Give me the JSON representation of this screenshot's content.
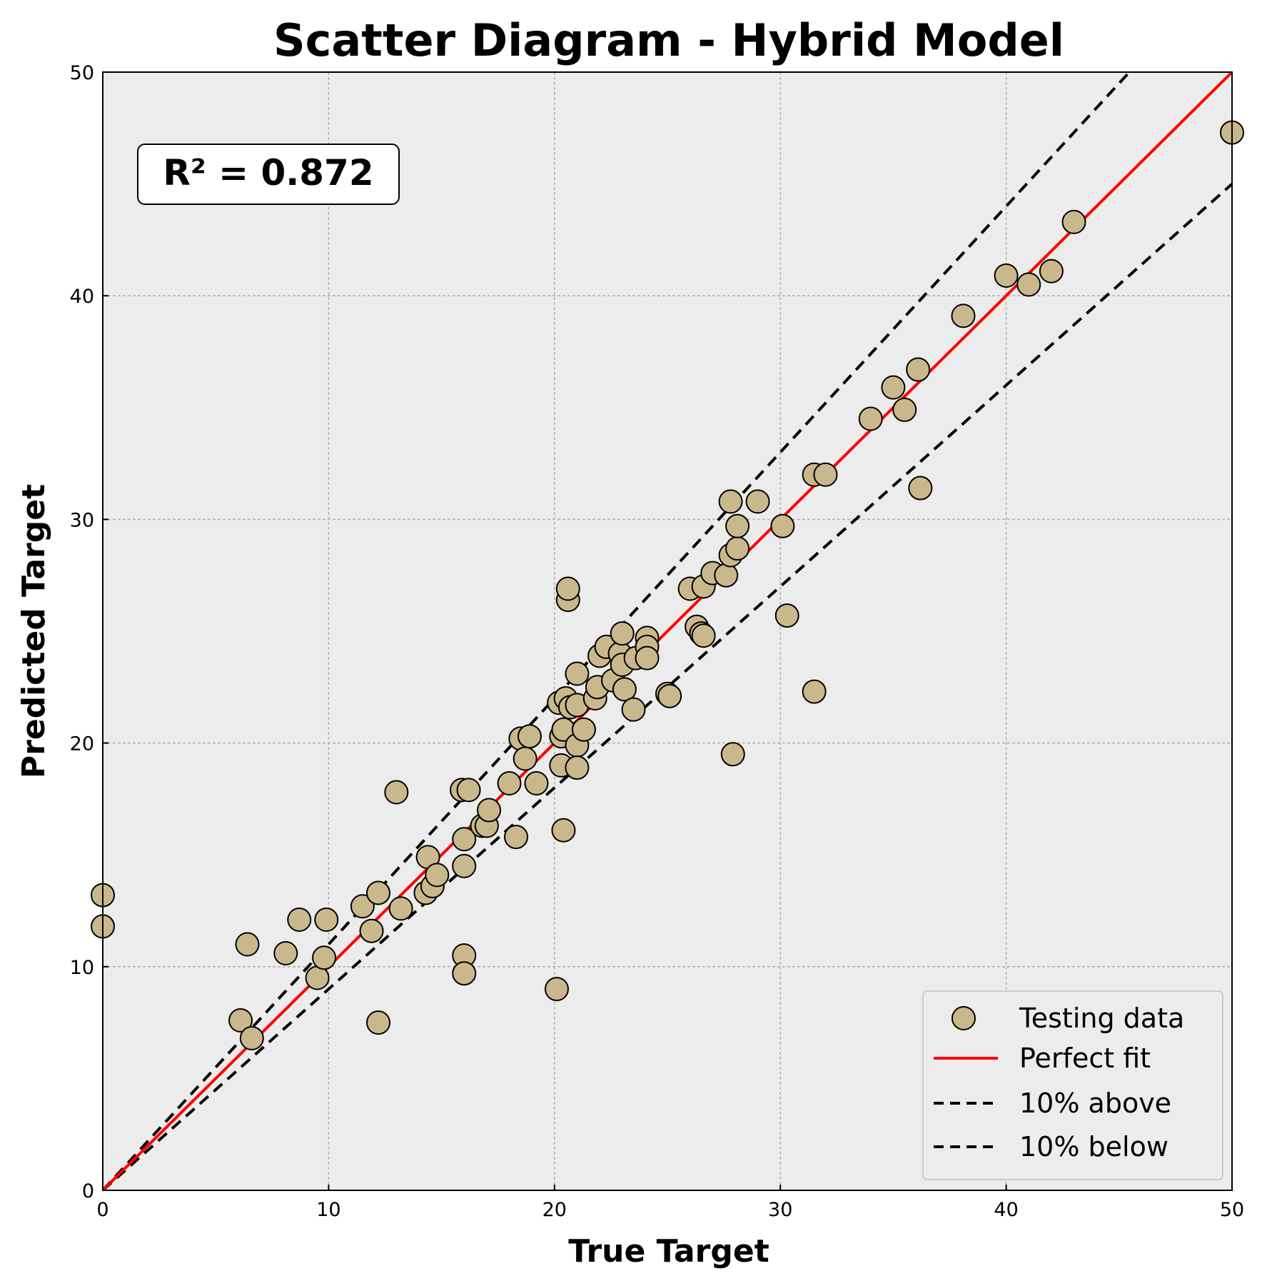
{
  "chart_data": {
    "type": "scatter",
    "title": "Scatter Diagram - Hybrid Model",
    "xlabel": "True Target",
    "ylabel": "Predicted Target",
    "xlim": [
      0,
      50
    ],
    "ylim": [
      0,
      50
    ],
    "xticks": [
      "0",
      "10",
      "20",
      "30",
      "40",
      "50"
    ],
    "yticks": [
      "0",
      "10",
      "20",
      "30",
      "40",
      "50"
    ],
    "grid": true,
    "annotation": "R² = 0.872",
    "legend_position": "lower-right",
    "legend": [
      {
        "label": "Testing data",
        "style": "marker"
      },
      {
        "label": "Perfect fit",
        "style": "solid-red"
      },
      {
        "label": "10% above",
        "style": "dashed-black"
      },
      {
        "label": "10% below",
        "style": "dashed-black"
      }
    ],
    "colors": {
      "point_fill": "#c9b88b",
      "perfect_fit": "#ff0000",
      "bounds": "#000000",
      "plot_background": "#ececec"
    },
    "reference_lines": [
      {
        "name": "Perfect fit",
        "slope": 1.0
      },
      {
        "name": "10% above",
        "slope": 1.1
      },
      {
        "name": "10% below",
        "slope": 0.9
      }
    ],
    "series": [
      {
        "name": "Testing data",
        "points": [
          [
            0.0,
            13.2
          ],
          [
            0.0,
            11.8
          ],
          [
            6.1,
            7.6
          ],
          [
            6.4,
            11.0
          ],
          [
            6.6,
            6.8
          ],
          [
            8.1,
            10.6
          ],
          [
            8.7,
            12.1
          ],
          [
            9.5,
            9.5
          ],
          [
            9.8,
            10.4
          ],
          [
            9.9,
            12.1
          ],
          [
            11.5,
            12.7
          ],
          [
            11.9,
            11.6
          ],
          [
            12.2,
            13.3
          ],
          [
            12.2,
            7.5
          ],
          [
            13.0,
            17.8
          ],
          [
            13.2,
            12.6
          ],
          [
            14.3,
            13.3
          ],
          [
            14.4,
            14.9
          ],
          [
            14.6,
            13.6
          ],
          [
            14.8,
            14.1
          ],
          [
            15.9,
            17.9
          ],
          [
            16.0,
            15.7
          ],
          [
            16.0,
            14.5
          ],
          [
            16.0,
            10.5
          ],
          [
            16.0,
            9.7
          ],
          [
            16.2,
            17.9
          ],
          [
            16.8,
            16.3
          ],
          [
            17.0,
            16.3
          ],
          [
            17.1,
            17.0
          ],
          [
            18.0,
            18.2
          ],
          [
            18.3,
            15.8
          ],
          [
            18.5,
            20.2
          ],
          [
            18.7,
            19.3
          ],
          [
            18.9,
            20.3
          ],
          [
            19.2,
            18.2
          ],
          [
            20.1,
            9.0
          ],
          [
            20.2,
            21.8
          ],
          [
            20.3,
            20.3
          ],
          [
            20.3,
            19.0
          ],
          [
            20.4,
            16.1
          ],
          [
            20.4,
            20.6
          ],
          [
            20.5,
            22.0
          ],
          [
            20.6,
            26.4
          ],
          [
            20.6,
            26.9
          ],
          [
            20.7,
            21.6
          ],
          [
            21.0,
            21.7
          ],
          [
            21.0,
            19.9
          ],
          [
            21.0,
            18.9
          ],
          [
            21.0,
            23.1
          ],
          [
            21.3,
            20.6
          ],
          [
            21.8,
            22.0
          ],
          [
            21.9,
            22.5
          ],
          [
            22.0,
            23.9
          ],
          [
            22.3,
            24.3
          ],
          [
            22.6,
            22.8
          ],
          [
            22.9,
            24.0
          ],
          [
            23.0,
            24.9
          ],
          [
            23.0,
            23.5
          ],
          [
            23.1,
            22.4
          ],
          [
            23.5,
            21.5
          ],
          [
            23.6,
            23.8
          ],
          [
            24.1,
            24.7
          ],
          [
            24.1,
            24.3
          ],
          [
            24.1,
            23.8
          ],
          [
            25.0,
            22.2
          ],
          [
            25.1,
            22.1
          ],
          [
            26.0,
            26.9
          ],
          [
            26.3,
            25.2
          ],
          [
            26.5,
            24.9
          ],
          [
            26.6,
            24.8
          ],
          [
            26.6,
            27.0
          ],
          [
            27.0,
            27.6
          ],
          [
            27.6,
            27.5
          ],
          [
            27.8,
            30.8
          ],
          [
            27.8,
            28.4
          ],
          [
            27.9,
            19.5
          ],
          [
            28.1,
            28.7
          ],
          [
            28.1,
            29.7
          ],
          [
            29.0,
            30.8
          ],
          [
            30.1,
            29.7
          ],
          [
            30.3,
            25.7
          ],
          [
            31.5,
            22.3
          ],
          [
            31.5,
            32.0
          ],
          [
            32.0,
            32.0
          ],
          [
            34.0,
            34.5
          ],
          [
            35.0,
            35.9
          ],
          [
            35.5,
            34.9
          ],
          [
            36.1,
            36.7
          ],
          [
            36.2,
            31.4
          ],
          [
            38.1,
            39.1
          ],
          [
            40.0,
            40.9
          ],
          [
            41.0,
            40.5
          ],
          [
            42.0,
            41.1
          ],
          [
            43.0,
            43.3
          ],
          [
            50.0,
            47.3
          ]
        ]
      }
    ]
  }
}
